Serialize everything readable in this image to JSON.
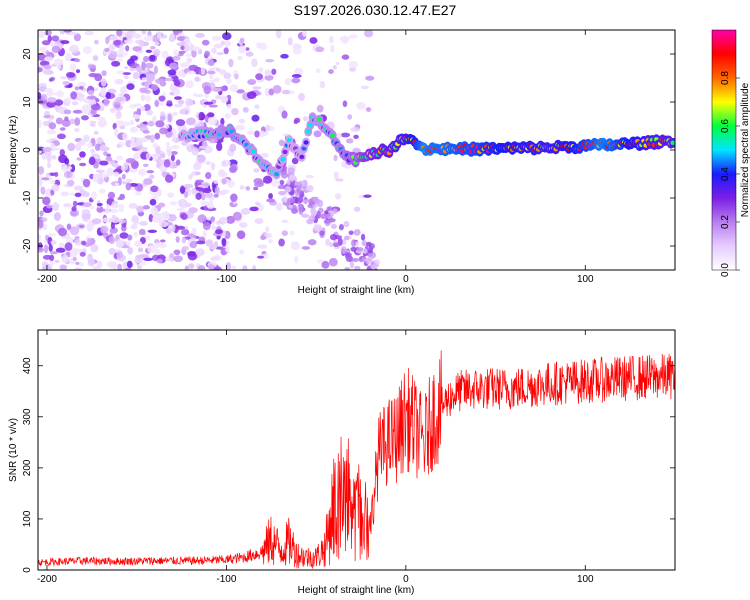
{
  "title": "S197.2026.030.12.47.E27",
  "chart_data": [
    {
      "type": "heatmap",
      "name": "spectrogram",
      "xlabel": "Height of straight line (km)",
      "ylabel": "Frequency (Hz)",
      "xlim": [
        -205,
        150
      ],
      "ylim": [
        -25,
        25
      ],
      "xticks": [
        -200,
        -100,
        0,
        100
      ],
      "yticks": [
        -20,
        -10,
        0,
        10,
        20
      ],
      "xtick_labels": [
        "-200",
        "-100",
        "0",
        "100"
      ],
      "ytick_labels": [
        "-20",
        "-10",
        "0",
        "10",
        "20"
      ],
      "colorbar": {
        "label": "Normalized spectral amplitude",
        "range": [
          0,
          1
        ],
        "ticks": [
          0.0,
          0.2,
          0.4,
          0.6,
          0.8
        ],
        "tick_labels": [
          "0.0",
          "0.2",
          "0.4",
          "0.6",
          "0.8"
        ],
        "colors": [
          "#ffffff",
          "#e6ccff",
          "#b97ef0",
          "#7a1ee6",
          "#1a1aff",
          "#00e5ff",
          "#00ff40",
          "#ffff00",
          "#ff6600",
          "#ff0000",
          "#ff00aa"
        ]
      },
      "ridge": [
        {
          "x": -125,
          "y": 3,
          "amp": 0.25
        },
        {
          "x": -110,
          "y": 3.5,
          "amp": 0.3
        },
        {
          "x": -98,
          "y": 4,
          "amp": 0.35
        },
        {
          "x": -90,
          "y": 1.5,
          "amp": 0.3
        },
        {
          "x": -80,
          "y": -3,
          "amp": 0.3
        },
        {
          "x": -72,
          "y": -5,
          "amp": 0.28
        },
        {
          "x": -65,
          "y": 2,
          "amp": 0.25
        },
        {
          "x": -58,
          "y": -2,
          "amp": 0.25
        },
        {
          "x": -52,
          "y": 7,
          "amp": 0.3
        },
        {
          "x": -42,
          "y": 4,
          "amp": 0.32
        },
        {
          "x": -35,
          "y": -1,
          "amp": 0.35
        },
        {
          "x": -28,
          "y": -2,
          "amp": 0.4
        },
        {
          "x": -18,
          "y": -0.5,
          "amp": 0.5
        },
        {
          "x": -8,
          "y": 0,
          "amp": 0.55
        },
        {
          "x": 0,
          "y": 3,
          "amp": 0.6
        },
        {
          "x": 10,
          "y": 0.3,
          "amp": 0.75
        },
        {
          "x": 40,
          "y": 0.2,
          "amp": 0.7
        },
        {
          "x": 80,
          "y": 0.5,
          "amp": 0.6
        },
        {
          "x": 110,
          "y": 1,
          "amp": 0.75
        },
        {
          "x": 135,
          "y": 1.5,
          "amp": 0.6
        },
        {
          "x": 150,
          "y": 2,
          "amp": 0.55
        }
      ]
    },
    {
      "type": "line",
      "name": "snr",
      "xlabel": "Height of straight line (km)",
      "ylabel": "SNR (10 * v/v)",
      "xlim": [
        -205,
        150
      ],
      "ylim": [
        0,
        470
      ],
      "xticks": [
        -200,
        -100,
        0,
        100
      ],
      "yticks": [
        0,
        100,
        200,
        300,
        400
      ],
      "xtick_labels": [
        "-200",
        "-100",
        "0",
        "100"
      ],
      "ytick_labels": [
        "0",
        "100",
        "200",
        "300",
        "400"
      ],
      "color": "#ff0000",
      "series": [
        {
          "name": "SNR",
          "x": [
            -205,
            -180,
            -160,
            -140,
            -120,
            -100,
            -90,
            -80,
            -75,
            -70,
            -65,
            -60,
            -55,
            -50,
            -45,
            -40,
            -35,
            -30,
            -25,
            -20,
            -15,
            -10,
            -5,
            0,
            5,
            10,
            15,
            20,
            25,
            30,
            40,
            50,
            60,
            80,
            100,
            120,
            150
          ],
          "y": [
            15,
            18,
            17,
            18,
            18,
            20,
            25,
            35,
            60,
            40,
            55,
            30,
            25,
            25,
            45,
            130,
            120,
            100,
            90,
            80,
            230,
            250,
            260,
            300,
            280,
            250,
            300,
            320,
            340,
            350,
            355,
            355,
            355,
            365,
            370,
            375,
            380
          ]
        }
      ]
    }
  ]
}
